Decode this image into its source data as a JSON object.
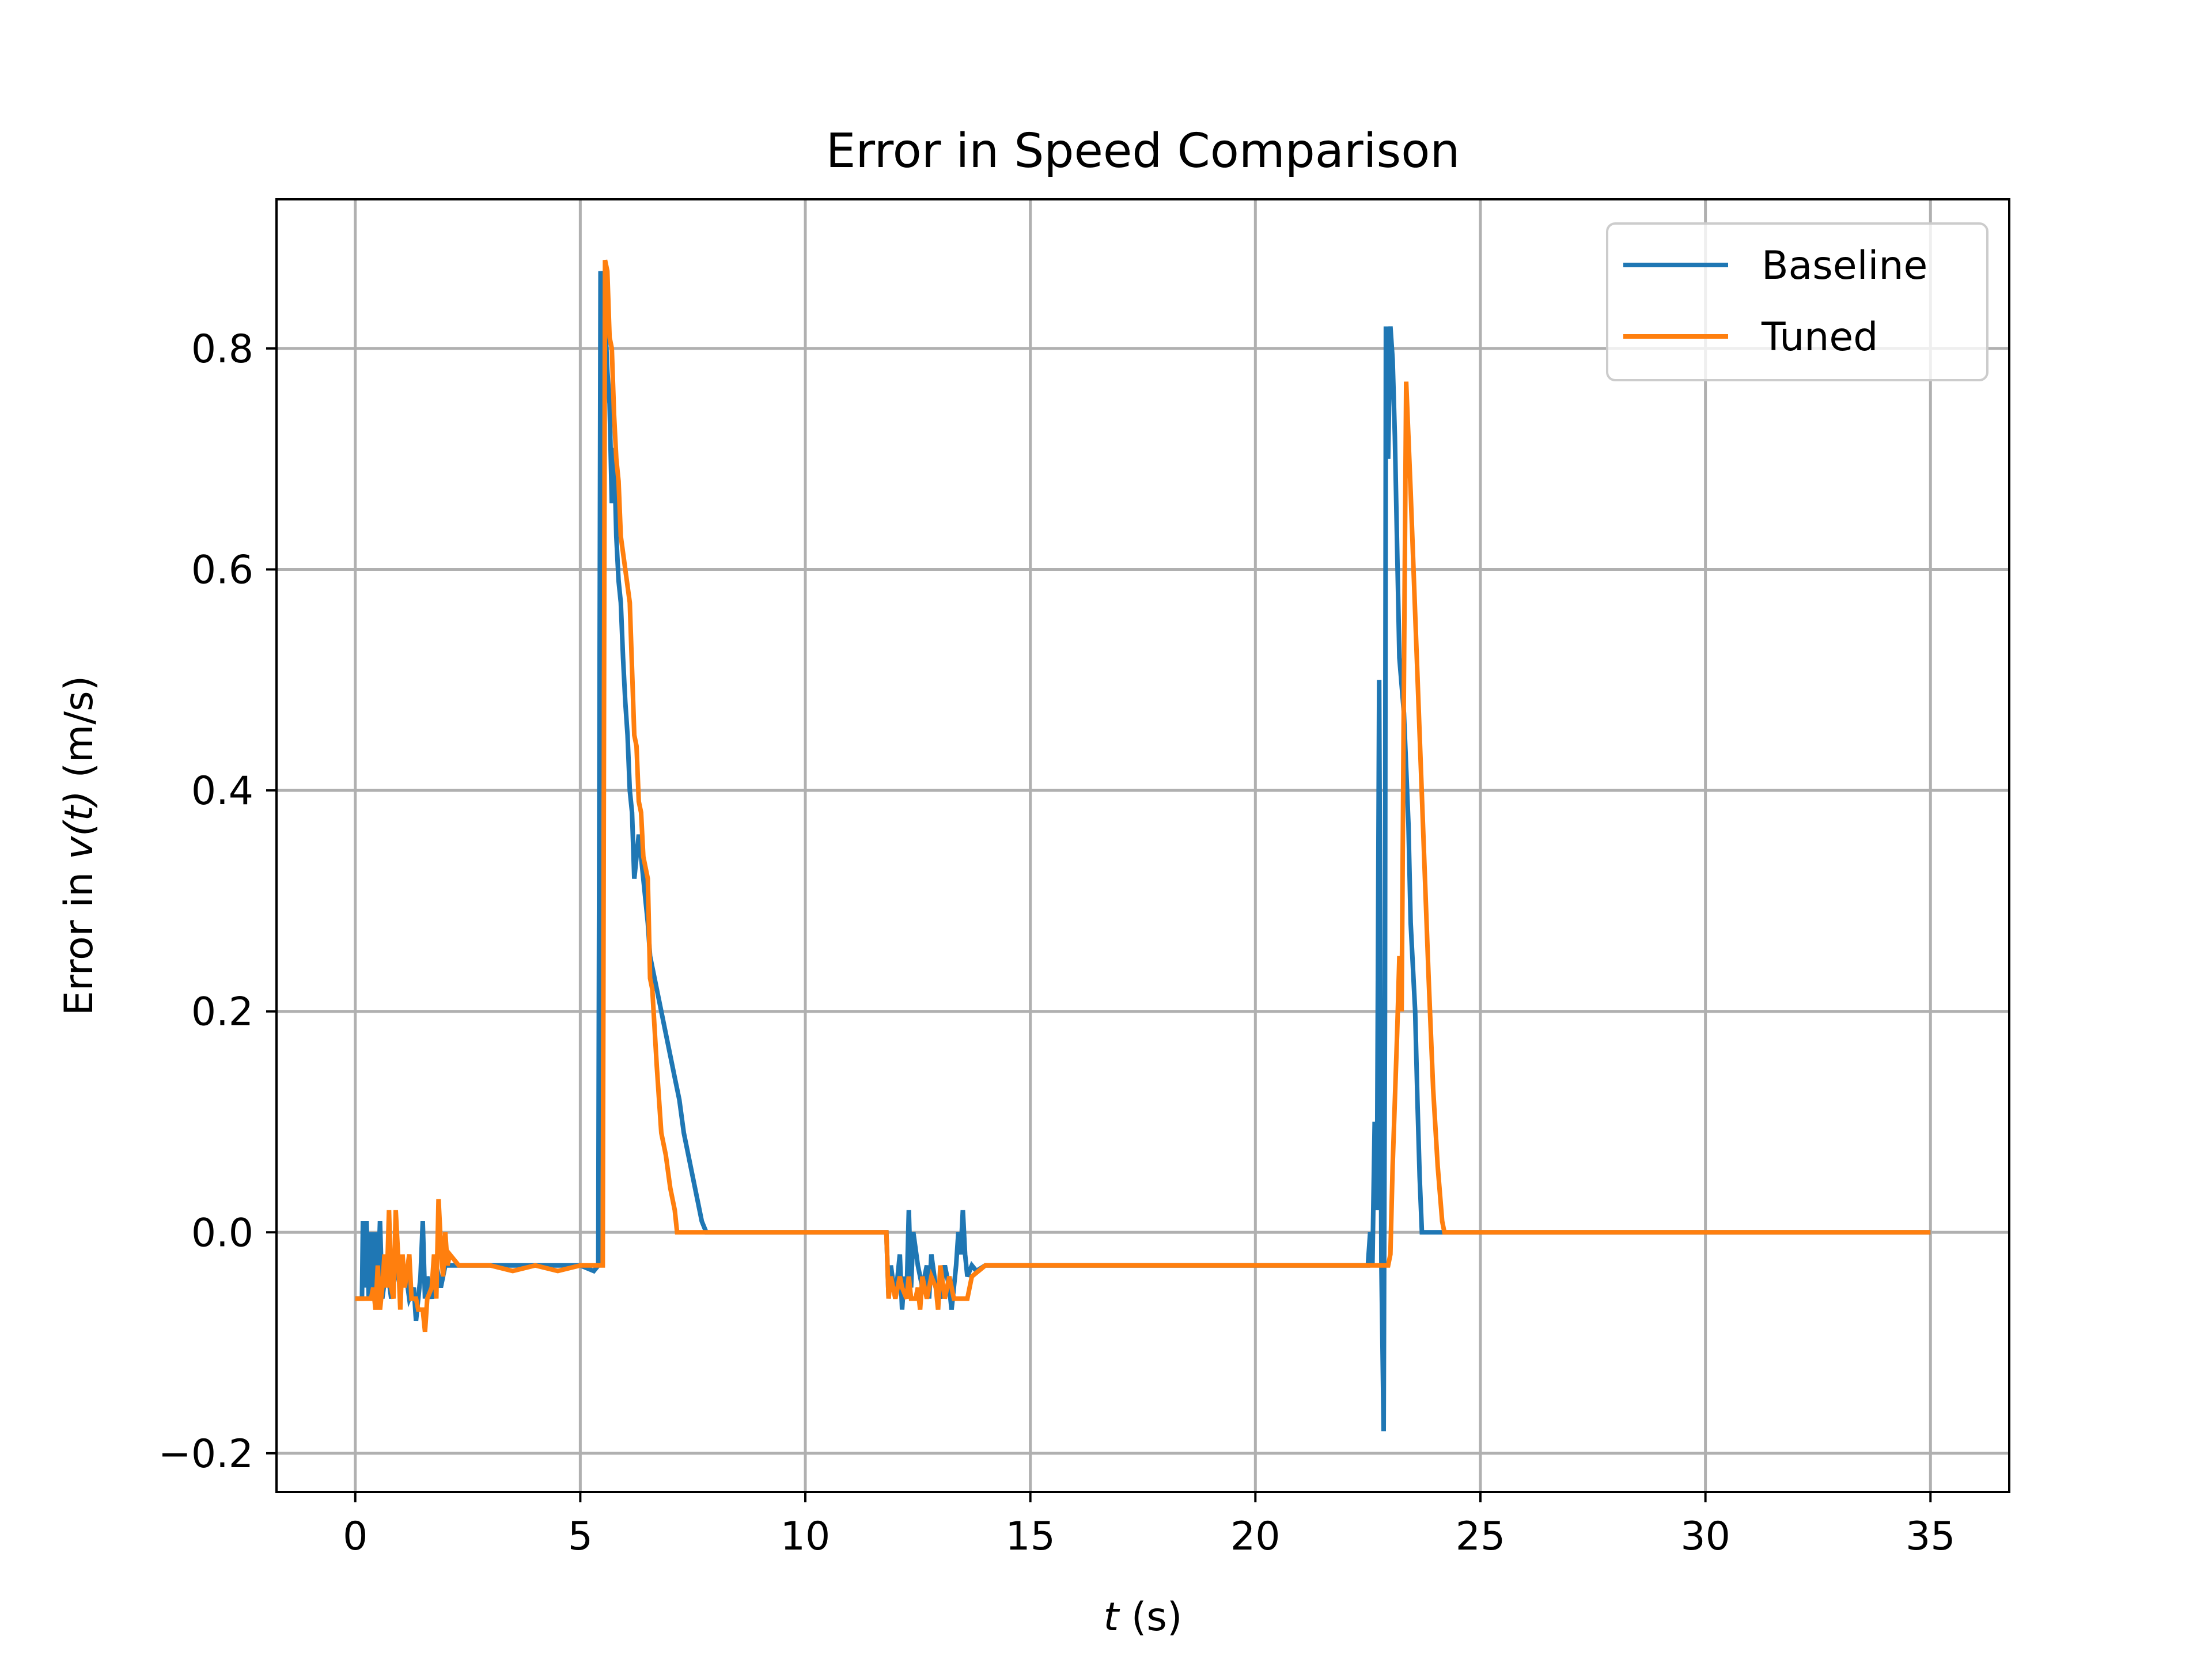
{
  "chart_data": {
    "type": "line",
    "title": "Error in Speed Comparison",
    "xlabel_var": "t",
    "xlabel_unit": " (s)",
    "ylabel_prefix": "Error in ",
    "ylabel_var": "v(t)",
    "ylabel_unit": " (m/s)",
    "xlim": [
      -1.75,
      36.75
    ],
    "ylim": [
      -0.235,
      0.935
    ],
    "xticks": [
      0,
      5,
      10,
      15,
      20,
      25,
      30,
      35
    ],
    "xtick_labels": [
      "0",
      "5",
      "10",
      "15",
      "20",
      "25",
      "30",
      "35"
    ],
    "yticks": [
      -0.2,
      0.0,
      0.2,
      0.4,
      0.6,
      0.8
    ],
    "ytick_labels": [
      "−0.2",
      "0.0",
      "0.2",
      "0.4",
      "0.6",
      "0.8"
    ],
    "grid": true,
    "legend_position": "top-right",
    "series": [
      {
        "name": "Baseline",
        "color": "#1f77b4",
        "points": [
          [
            0,
            -0.06
          ],
          [
            0.15,
            -0.06
          ],
          [
            0.17,
            0.01
          ],
          [
            0.2,
            -0.05
          ],
          [
            0.25,
            0.01
          ],
          [
            0.3,
            -0.06
          ],
          [
            0.35,
            0.0
          ],
          [
            0.4,
            -0.06
          ],
          [
            0.45,
            0.0
          ],
          [
            0.5,
            -0.05
          ],
          [
            0.55,
            0.01
          ],
          [
            0.6,
            -0.06
          ],
          [
            0.7,
            -0.03
          ],
          [
            0.8,
            -0.06
          ],
          [
            0.9,
            -0.03
          ],
          [
            1.0,
            -0.05
          ],
          [
            1.1,
            -0.03
          ],
          [
            1.2,
            -0.06
          ],
          [
            1.3,
            -0.05
          ],
          [
            1.35,
            -0.08
          ],
          [
            1.45,
            -0.04
          ],
          [
            1.5,
            0.01
          ],
          [
            1.55,
            -0.06
          ],
          [
            1.6,
            -0.04
          ],
          [
            1.7,
            -0.06
          ],
          [
            1.8,
            -0.03
          ],
          [
            1.9,
            -0.05
          ],
          [
            2.0,
            -0.03
          ],
          [
            2.2,
            -0.03
          ],
          [
            2.5,
            -0.03
          ],
          [
            3.0,
            -0.03
          ],
          [
            3.5,
            -0.03
          ],
          [
            4.0,
            -0.03
          ],
          [
            4.5,
            -0.03
          ],
          [
            5.0,
            -0.03
          ],
          [
            5.3,
            -0.035
          ],
          [
            5.4,
            -0.03
          ],
          [
            5.45,
            0.87
          ],
          [
            5.55,
            0.83
          ],
          [
            5.6,
            0.78
          ],
          [
            5.65,
            0.75
          ],
          [
            5.7,
            0.66
          ],
          [
            5.75,
            0.71
          ],
          [
            5.8,
            0.63
          ],
          [
            5.85,
            0.59
          ],
          [
            5.9,
            0.57
          ],
          [
            5.95,
            0.52
          ],
          [
            6.0,
            0.48
          ],
          [
            6.05,
            0.45
          ],
          [
            6.1,
            0.4
          ],
          [
            6.15,
            0.38
          ],
          [
            6.2,
            0.32
          ],
          [
            6.3,
            0.36
          ],
          [
            6.35,
            0.34
          ],
          [
            6.4,
            0.32
          ],
          [
            6.5,
            0.28
          ],
          [
            6.55,
            0.25
          ],
          [
            6.65,
            0.23
          ],
          [
            6.8,
            0.2
          ],
          [
            6.9,
            0.18
          ],
          [
            7.0,
            0.16
          ],
          [
            7.1,
            0.14
          ],
          [
            7.2,
            0.12
          ],
          [
            7.3,
            0.09
          ],
          [
            7.4,
            0.07
          ],
          [
            7.5,
            0.05
          ],
          [
            7.6,
            0.03
          ],
          [
            7.7,
            0.01
          ],
          [
            7.8,
            0.0
          ],
          [
            8.0,
            0.0
          ],
          [
            9.0,
            0.0
          ],
          [
            10.0,
            0.0
          ],
          [
            11.0,
            0.0
          ],
          [
            11.8,
            0.0
          ],
          [
            11.85,
            -0.06
          ],
          [
            11.9,
            -0.03
          ],
          [
            12.0,
            -0.06
          ],
          [
            12.1,
            -0.02
          ],
          [
            12.15,
            -0.07
          ],
          [
            12.2,
            -0.04
          ],
          [
            12.25,
            -0.06
          ],
          [
            12.3,
            0.02
          ],
          [
            12.35,
            -0.05
          ],
          [
            12.4,
            0.0
          ],
          [
            12.5,
            -0.03
          ],
          [
            12.6,
            -0.05
          ],
          [
            12.7,
            -0.03
          ],
          [
            12.75,
            -0.06
          ],
          [
            12.8,
            -0.02
          ],
          [
            12.9,
            -0.05
          ],
          [
            13.0,
            -0.06
          ],
          [
            13.05,
            -0.04
          ],
          [
            13.1,
            -0.03
          ],
          [
            13.2,
            -0.05
          ],
          [
            13.25,
            -0.07
          ],
          [
            13.3,
            -0.05
          ],
          [
            13.35,
            -0.03
          ],
          [
            13.4,
            0.0
          ],
          [
            13.45,
            -0.02
          ],
          [
            13.5,
            0.02
          ],
          [
            13.55,
            -0.02
          ],
          [
            13.6,
            -0.04
          ],
          [
            13.7,
            -0.03
          ],
          [
            13.8,
            -0.035
          ],
          [
            14.0,
            -0.03
          ],
          [
            14.5,
            -0.03
          ],
          [
            15.0,
            -0.03
          ],
          [
            16.0,
            -0.03
          ],
          [
            17.0,
            -0.03
          ],
          [
            18.0,
            -0.03
          ],
          [
            19.0,
            -0.03
          ],
          [
            20.0,
            -0.03
          ],
          [
            21.0,
            -0.03
          ],
          [
            22.0,
            -0.03
          ],
          [
            22.5,
            -0.03
          ],
          [
            22.55,
            0.0
          ],
          [
            22.6,
            -0.03
          ],
          [
            22.65,
            0.1
          ],
          [
            22.7,
            0.02
          ],
          [
            22.75,
            0.5
          ],
          [
            22.8,
            -0.03
          ],
          [
            22.85,
            -0.18
          ],
          [
            22.88,
            0.2
          ],
          [
            22.9,
            0.82
          ],
          [
            22.95,
            0.7
          ],
          [
            23.0,
            0.82
          ],
          [
            23.05,
            0.79
          ],
          [
            23.1,
            0.72
          ],
          [
            23.2,
            0.52
          ],
          [
            23.3,
            0.47
          ],
          [
            23.4,
            0.37
          ],
          [
            23.45,
            0.28
          ],
          [
            23.55,
            0.2
          ],
          [
            23.6,
            0.12
          ],
          [
            23.65,
            0.05
          ],
          [
            23.7,
            0.0
          ],
          [
            23.8,
            0.0
          ],
          [
            24.5,
            0.0
          ],
          [
            25.0,
            0.0
          ],
          [
            26.0,
            0.0
          ],
          [
            27.0,
            0.0
          ],
          [
            28.0,
            0.0
          ],
          [
            29.0,
            0.0
          ],
          [
            30.0,
            0.0
          ],
          [
            31.0,
            0.0
          ],
          [
            32.0,
            0.0
          ],
          [
            33.0,
            0.0
          ],
          [
            34.0,
            0.0
          ],
          [
            35.0,
            0.0
          ]
        ]
      },
      {
        "name": "Tuned",
        "color": "#ff7f0e",
        "points": [
          [
            0,
            -0.06
          ],
          [
            0.35,
            -0.06
          ],
          [
            0.4,
            -0.05
          ],
          [
            0.45,
            -0.07
          ],
          [
            0.5,
            -0.03
          ],
          [
            0.55,
            -0.07
          ],
          [
            0.6,
            -0.05
          ],
          [
            0.65,
            -0.02
          ],
          [
            0.7,
            -0.05
          ],
          [
            0.75,
            0.02
          ],
          [
            0.8,
            -0.05
          ],
          [
            0.85,
            -0.06
          ],
          [
            0.9,
            0.02
          ],
          [
            0.95,
            -0.02
          ],
          [
            1.0,
            -0.07
          ],
          [
            1.05,
            -0.02
          ],
          [
            1.1,
            -0.05
          ],
          [
            1.2,
            -0.02
          ],
          [
            1.25,
            -0.06
          ],
          [
            1.35,
            -0.06
          ],
          [
            1.4,
            -0.07
          ],
          [
            1.5,
            -0.07
          ],
          [
            1.55,
            -0.09
          ],
          [
            1.6,
            -0.06
          ],
          [
            1.7,
            -0.05
          ],
          [
            1.75,
            -0.02
          ],
          [
            1.8,
            -0.06
          ],
          [
            1.85,
            0.03
          ],
          [
            1.9,
            -0.01
          ],
          [
            1.95,
            -0.04
          ],
          [
            2.0,
            0.0
          ],
          [
            2.05,
            -0.03
          ],
          [
            2.1,
            -0.02
          ],
          [
            2.3,
            -0.03
          ],
          [
            2.5,
            -0.03
          ],
          [
            3.0,
            -0.03
          ],
          [
            3.5,
            -0.035
          ],
          [
            4.0,
            -0.03
          ],
          [
            4.5,
            -0.035
          ],
          [
            5.0,
            -0.03
          ],
          [
            5.5,
            -0.03
          ],
          [
            5.55,
            0.88
          ],
          [
            5.6,
            0.87
          ],
          [
            5.65,
            0.81
          ],
          [
            5.7,
            0.8
          ],
          [
            5.75,
            0.74
          ],
          [
            5.8,
            0.7
          ],
          [
            5.85,
            0.68
          ],
          [
            5.9,
            0.63
          ],
          [
            6.0,
            0.6
          ],
          [
            6.1,
            0.57
          ],
          [
            6.2,
            0.45
          ],
          [
            6.25,
            0.44
          ],
          [
            6.3,
            0.39
          ],
          [
            6.35,
            0.38
          ],
          [
            6.4,
            0.34
          ],
          [
            6.5,
            0.32
          ],
          [
            6.55,
            0.23
          ],
          [
            6.6,
            0.22
          ],
          [
            6.7,
            0.15
          ],
          [
            6.8,
            0.09
          ],
          [
            6.9,
            0.07
          ],
          [
            7.0,
            0.04
          ],
          [
            7.1,
            0.02
          ],
          [
            7.15,
            0.0
          ],
          [
            7.5,
            0.0
          ],
          [
            8.0,
            0.0
          ],
          [
            9.0,
            0.0
          ],
          [
            10.0,
            0.0
          ],
          [
            11.0,
            0.0
          ],
          [
            11.8,
            0.0
          ],
          [
            11.85,
            -0.06
          ],
          [
            11.9,
            -0.04
          ],
          [
            12.0,
            -0.06
          ],
          [
            12.1,
            -0.04
          ],
          [
            12.15,
            -0.05
          ],
          [
            12.25,
            -0.06
          ],
          [
            12.3,
            -0.04
          ],
          [
            12.35,
            -0.06
          ],
          [
            12.45,
            -0.06
          ],
          [
            12.5,
            -0.05
          ],
          [
            12.55,
            -0.07
          ],
          [
            12.6,
            -0.04
          ],
          [
            12.7,
            -0.06
          ],
          [
            12.8,
            -0.04
          ],
          [
            12.9,
            -0.05
          ],
          [
            12.95,
            -0.07
          ],
          [
            13.0,
            -0.03
          ],
          [
            13.1,
            -0.06
          ],
          [
            13.2,
            -0.04
          ],
          [
            13.3,
            -0.06
          ],
          [
            13.5,
            -0.06
          ],
          [
            13.6,
            -0.06
          ],
          [
            13.7,
            -0.04
          ],
          [
            14.0,
            -0.03
          ],
          [
            14.5,
            -0.03
          ],
          [
            15.0,
            -0.03
          ],
          [
            16.0,
            -0.03
          ],
          [
            17.0,
            -0.03
          ],
          [
            18.0,
            -0.03
          ],
          [
            19.0,
            -0.03
          ],
          [
            20.0,
            -0.03
          ],
          [
            21.0,
            -0.03
          ],
          [
            22.0,
            -0.03
          ],
          [
            22.5,
            -0.03
          ],
          [
            22.95,
            -0.03
          ],
          [
            23.0,
            -0.02
          ],
          [
            23.05,
            0.06
          ],
          [
            23.1,
            0.12
          ],
          [
            23.15,
            0.18
          ],
          [
            23.2,
            0.25
          ],
          [
            23.25,
            0.2
          ],
          [
            23.3,
            0.5
          ],
          [
            23.35,
            0.77
          ],
          [
            23.45,
            0.67
          ],
          [
            23.55,
            0.56
          ],
          [
            23.65,
            0.45
          ],
          [
            23.75,
            0.34
          ],
          [
            23.85,
            0.23
          ],
          [
            23.95,
            0.13
          ],
          [
            24.05,
            0.06
          ],
          [
            24.15,
            0.01
          ],
          [
            24.2,
            0.0
          ],
          [
            25.0,
            0.0
          ],
          [
            26.0,
            0.0
          ],
          [
            27.0,
            0.0
          ],
          [
            28.0,
            0.0
          ],
          [
            29.0,
            0.0
          ],
          [
            30.0,
            0.0
          ],
          [
            31.0,
            0.0
          ],
          [
            32.0,
            0.0
          ],
          [
            33.0,
            0.0
          ],
          [
            34.0,
            0.0
          ],
          [
            35.0,
            0.0
          ]
        ]
      }
    ]
  }
}
